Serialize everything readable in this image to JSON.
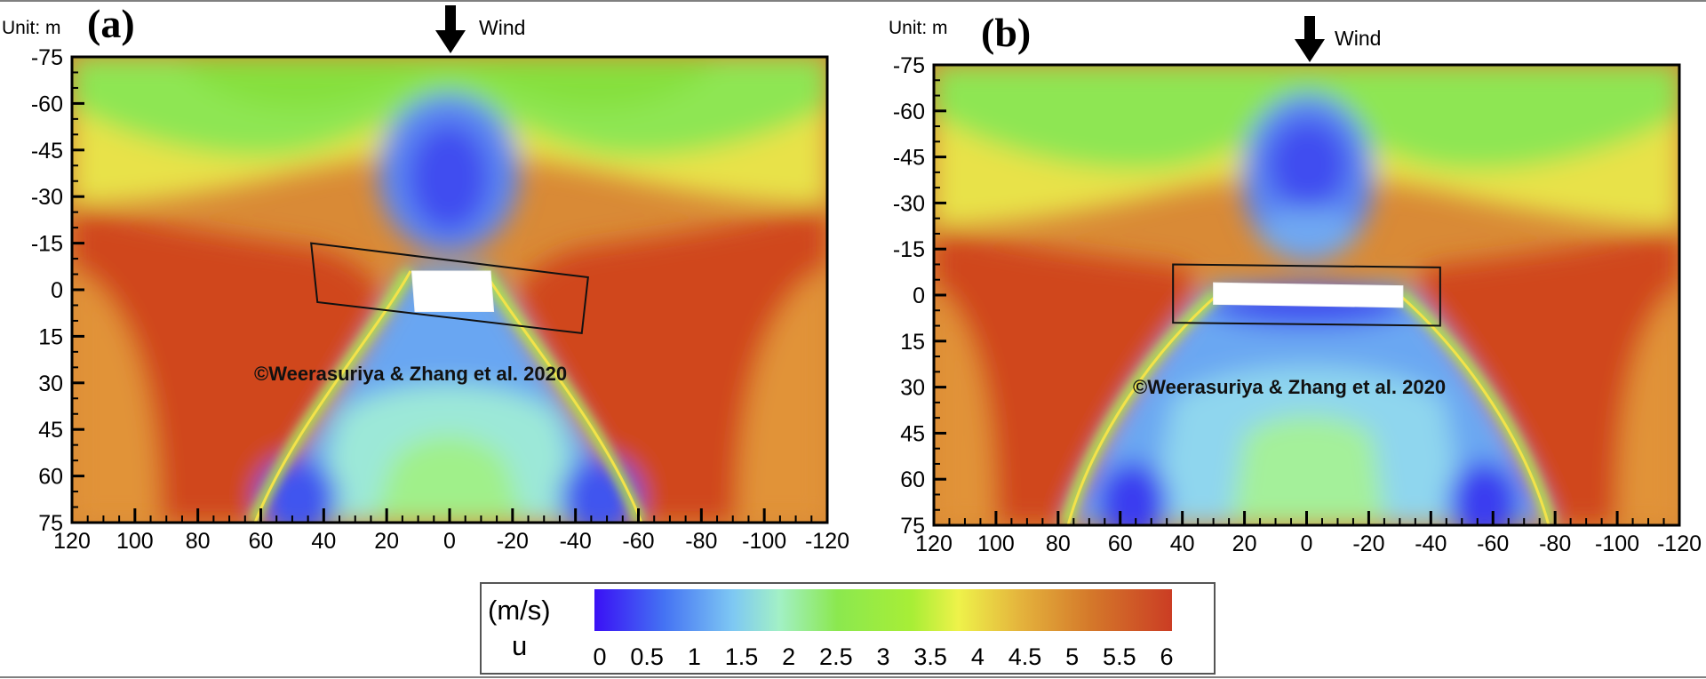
{
  "chart_data": [
    {
      "type": "heatmap",
      "panel_label": "(a)",
      "unit_label": "Unit: m",
      "wind_label": "Wind",
      "copyright": "©Weerasuriya & Zhang et al. 2020",
      "xlim": [
        120,
        -120
      ],
      "ylim": [
        -75,
        75
      ],
      "x_ticks": [
        120,
        100,
        80,
        60,
        40,
        20,
        0,
        -20,
        -40,
        -60,
        -80,
        -100,
        -120
      ],
      "y_ticks": [
        -75,
        -60,
        -45,
        -30,
        -15,
        0,
        15,
        30,
        45,
        60,
        75
      ],
      "building_corners": [
        [
          12,
          -6
        ],
        [
          -13,
          -6
        ],
        [
          -14,
          7
        ],
        [
          11,
          7
        ]
      ],
      "frame_corners": [
        [
          44,
          -15
        ],
        [
          -44,
          -4
        ],
        [
          -42,
          14
        ],
        [
          42,
          4
        ]
      ]
    },
    {
      "type": "heatmap",
      "panel_label": "(b)",
      "unit_label": "Unit: m",
      "wind_label": "Wind",
      "copyright": "©Weerasuriya & Zhang et al. 2020",
      "xlim": [
        120,
        -120
      ],
      "ylim": [
        -75,
        75
      ],
      "x_ticks": [
        120,
        100,
        80,
        60,
        40,
        20,
        0,
        -20,
        -40,
        -60,
        -80,
        -100,
        -120
      ],
      "y_ticks": [
        -75,
        -60,
        -45,
        -30,
        -15,
        0,
        15,
        30,
        45,
        60,
        75
      ],
      "building_corners": [
        [
          30,
          -4
        ],
        [
          -31,
          -3
        ],
        [
          -31,
          4
        ],
        [
          30,
          3
        ]
      ],
      "frame_corners": [
        [
          43,
          -10
        ],
        [
          -43,
          -9
        ],
        [
          -43,
          10
        ],
        [
          43,
          9
        ]
      ]
    }
  ],
  "colorbar": {
    "title_unit": "(m/s)",
    "variable": "u",
    "ticks": [
      "0",
      "0.5",
      "1",
      "1.5",
      "2",
      "2.5",
      "3",
      "3.5",
      "4",
      "4.5",
      "5",
      "5.5",
      "6"
    ],
    "range": [
      0,
      6
    ],
    "colors": [
      "#3a10f5",
      "#4472f3",
      "#7ec8f3",
      "#a2f0c6",
      "#8be84f",
      "#a8ee36",
      "#eef24a",
      "#e4b23c",
      "#d4782a",
      "#cb3d24"
    ]
  }
}
